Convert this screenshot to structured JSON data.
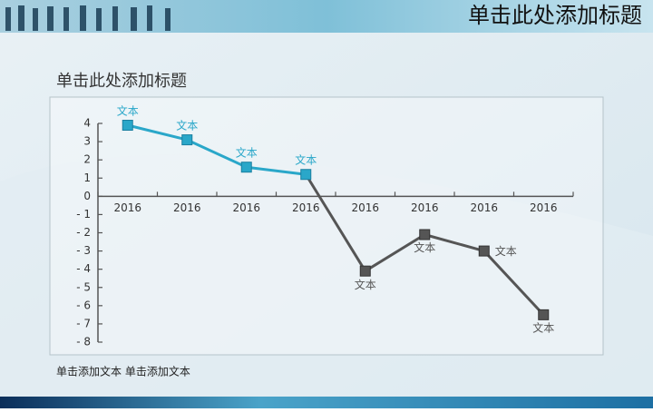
{
  "slide": {
    "title": "单击此处添加标题",
    "heading": "单击此处添加标题",
    "footer": "单击添加文本 单击添加文本"
  },
  "chart_data": {
    "type": "line",
    "categories": [
      "2016",
      "2016",
      "2016",
      "2016",
      "2016",
      "2016",
      "2016",
      "2016"
    ],
    "series": [
      {
        "values": [
          3.9,
          3.1,
          1.6,
          1.2,
          -4.1,
          -2.1,
          -3.0,
          -6.5
        ],
        "value_labels": [
          "文本",
          "文本",
          "文本",
          "文本",
          "文本",
          "文本",
          "文本",
          "文本"
        ],
        "point_colors": [
          "#2aa7c9",
          "#2aa7c9",
          "#2aa7c9",
          "#2aa7c9",
          "#555555",
          "#555555",
          "#555555",
          "#555555"
        ]
      }
    ],
    "ylim": [
      -8,
      4
    ],
    "yticks": [
      4,
      3,
      2,
      1,
      0,
      {
        "value": -1,
        "label": "- 1"
      },
      {
        "value": -2,
        "label": "- 2"
      },
      {
        "value": -3,
        "label": "- 3"
      },
      {
        "value": -4,
        "label": "- 4"
      },
      {
        "value": -5,
        "label": "- 5"
      },
      {
        "value": -6,
        "label": "- 6"
      },
      {
        "value": -7,
        "label": "- 7"
      },
      {
        "value": -8,
        "label": "- 8"
      }
    ]
  }
}
